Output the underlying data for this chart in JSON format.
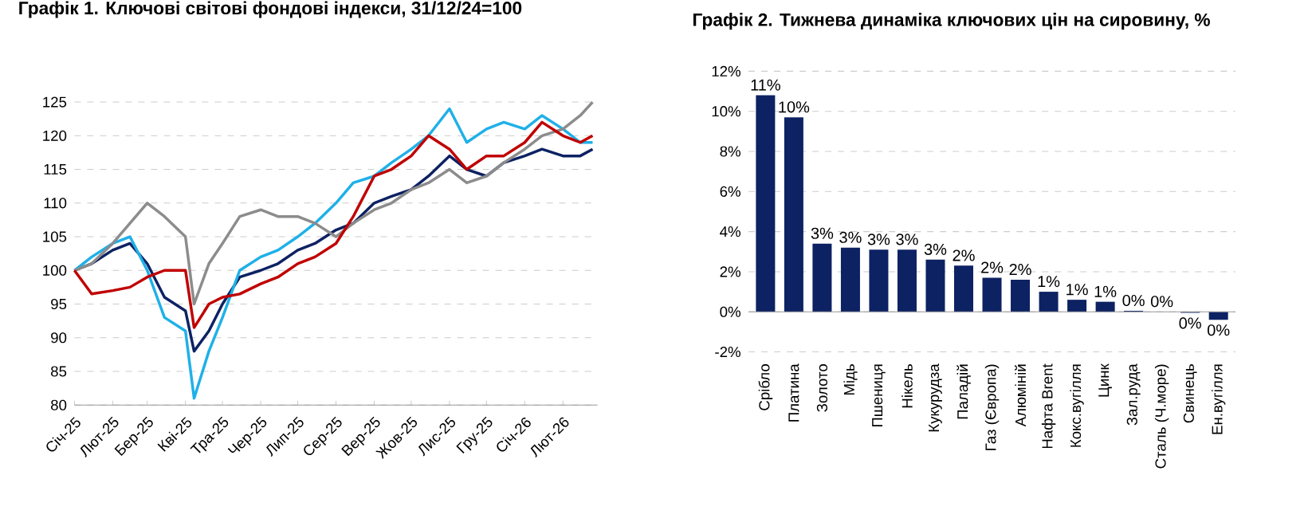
{
  "chart_data": [
    {
      "type": "line",
      "title": "Графік 1. Ключові світові фондові індекси, 31/12/24=100",
      "x": [
        "2025-01-01",
        "2025-01-15",
        "2025-02-01",
        "2025-02-15",
        "2025-03-01",
        "2025-03-15",
        "2025-04-01",
        "2025-04-08",
        "2025-04-20",
        "2025-05-01",
        "2025-05-15",
        "2025-06-01",
        "2025-06-15",
        "2025-07-01",
        "2025-07-15",
        "2025-08-01",
        "2025-08-15",
        "2025-09-01",
        "2025-09-15",
        "2025-10-01",
        "2025-10-15",
        "2025-11-01",
        "2025-11-15",
        "2025-12-01",
        "2025-12-15",
        "2026-01-01",
        "2026-01-15",
        "2026-02-01",
        "2026-02-15",
        "2026-02-25"
      ],
      "series": [
        {
          "color": "#0d2263",
          "values": [
            100,
            101,
            103,
            104,
            101,
            96,
            94,
            88,
            91,
            95,
            99,
            100,
            101,
            103,
            104,
            106,
            107,
            110,
            111,
            112,
            114,
            117,
            115,
            114,
            116,
            117,
            118,
            117,
            117,
            118
          ]
        },
        {
          "color": "#1fb0e8",
          "values": [
            100,
            102,
            104,
            105,
            100,
            93,
            91,
            81,
            88,
            93,
            100,
            102,
            103,
            105,
            107,
            110,
            113,
            114,
            116,
            118,
            120,
            124,
            119,
            121,
            122,
            121,
            123,
            121,
            119,
            119
          ]
        },
        {
          "color": "#8c8c8c",
          "values": [
            100,
            101,
            104,
            107,
            110,
            108,
            105,
            95,
            101,
            104,
            108,
            109,
            108,
            108,
            107,
            105,
            107,
            109,
            110,
            112,
            113,
            115,
            113,
            114,
            116,
            118,
            120,
            121,
            123,
            125
          ]
        },
        {
          "color": "#c00000",
          "values": [
            100,
            96.5,
            97,
            97.5,
            99,
            100,
            100,
            91.5,
            95,
            96,
            96.5,
            98,
            99,
            101,
            102,
            104,
            108,
            114,
            115,
            117,
            120,
            118,
            115,
            117,
            117,
            119,
            122,
            120,
            119,
            120
          ]
        }
      ],
      "xlim": [
        "2025-01-01",
        "2026-03-01"
      ],
      "xticks": [
        {
          "value": "2025-01-01",
          "label": "Січ-25"
        },
        {
          "value": "2025-02-01",
          "label": "Лют-25"
        },
        {
          "value": "2025-03-01",
          "label": "Бер-25"
        },
        {
          "value": "2025-04-01",
          "label": "Кві-25"
        },
        {
          "value": "2025-05-01",
          "label": "Тра-25"
        },
        {
          "value": "2025-06-01",
          "label": "Чер-25"
        },
        {
          "value": "2025-07-01",
          "label": "Лип-25"
        },
        {
          "value": "2025-08-01",
          "label": "Сер-25"
        },
        {
          "value": "2025-09-01",
          "label": "Вер-25"
        },
        {
          "value": "2025-10-01",
          "label": "Жов-25"
        },
        {
          "value": "2025-11-01",
          "label": "Лис-25"
        },
        {
          "value": "2025-12-01",
          "label": "Гру-25"
        },
        {
          "value": "2026-01-01",
          "label": "Січ-26"
        },
        {
          "value": "2026-02-01",
          "label": "Лют-26"
        }
      ],
      "ylim": [
        80,
        125
      ],
      "yticks": [
        80,
        85,
        90,
        95,
        100,
        105,
        110,
        115,
        120,
        125
      ],
      "grid": "y"
    },
    {
      "type": "bar",
      "title": "Графік 2. Тижнева динаміка ключових цін на сировину, %",
      "categories": [
        "Срібло",
        "Платина",
        "Золото",
        "Мідь",
        "Пшениця",
        "Нікель",
        "Кукурудза",
        "Паладій",
        "Газ (Європа)",
        "Алюміній",
        "Нафта Brent",
        "Кокс.вугілля",
        "Цинк",
        "Зал.руда",
        "Сталь (Ч.море)",
        "Свинець",
        "Ен.вугілля"
      ],
      "values": [
        10.8,
        9.7,
        3.4,
        3.2,
        3.1,
        3.1,
        2.6,
        2.3,
        1.7,
        1.6,
        1.0,
        0.6,
        0.5,
        0.05,
        0.0,
        -0.05,
        -0.4
      ],
      "value_labels": [
        "11%",
        "10%",
        "3%",
        "3%",
        "3%",
        "3%",
        "3%",
        "2%",
        "2%",
        "2%",
        "1%",
        "1%",
        "1%",
        "0%",
        "0%",
        "0%",
        "0%"
      ],
      "color": "#0d2263",
      "ylim": [
        -2,
        12
      ],
      "yticks": [
        {
          "value": -2,
          "label": "-2%"
        },
        {
          "value": 0,
          "label": "0%"
        },
        {
          "value": 2,
          "label": "2%"
        },
        {
          "value": 4,
          "label": "4%"
        },
        {
          "value": 6,
          "label": "6%"
        },
        {
          "value": 8,
          "label": "8%"
        },
        {
          "value": 10,
          "label": "10%"
        },
        {
          "value": 12,
          "label": "12%"
        }
      ],
      "grid": "y"
    }
  ]
}
